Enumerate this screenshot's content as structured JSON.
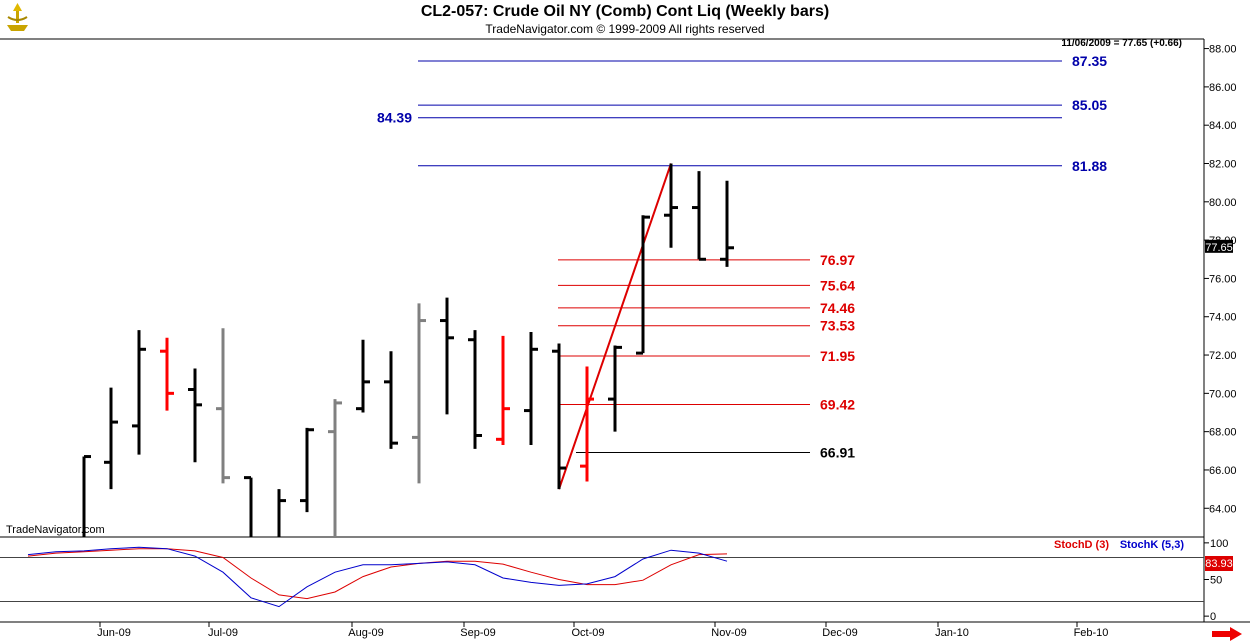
{
  "header": {
    "title": "CL2-057:  Crude Oil NY (Comb) Cont Liq  (Weekly bars)",
    "subtitle": "TradeNavigator.com © 1999-2009 All rights reserved",
    "last_quote": "11/06/2009 = 77.65 (+0.66)",
    "watermark": "TradeNavigator.com"
  },
  "colors": {
    "up_bar": "#000000",
    "down_bar": "#ff0000",
    "neutral_bar": "#808080",
    "blue_level": "#0000aa",
    "red_level": "#dd0000",
    "stoch_d": "#dd0000",
    "stoch_k": "#0000cc"
  },
  "chart_data": [
    {
      "type": "ohlc",
      "x_labels": [
        "Jun-09",
        "Jul-09",
        "Aug-09",
        "Sep-09",
        "Oct-09",
        "Nov-09",
        "Dec-09",
        "Jan-10",
        "Feb-10"
      ],
      "ylim": [
        62.5,
        88.5
      ],
      "y_ticks": [
        "64.00",
        "66.00",
        "68.00",
        "70.00",
        "72.00",
        "74.00",
        "76.00",
        "78.00",
        "80.00",
        "82.00",
        "84.00",
        "86.00",
        "88.00"
      ],
      "last_price": "77.65",
      "bars": [
        {
          "x": 84,
          "o": 61.5,
          "h": 66.7,
          "l": 61.0,
          "c": 66.7,
          "color": "up"
        },
        {
          "x": 111,
          "o": 66.4,
          "h": 70.3,
          "l": 65.0,
          "c": 68.5,
          "color": "up"
        },
        {
          "x": 139,
          "o": 68.3,
          "h": 73.3,
          "l": 66.8,
          "c": 72.3,
          "color": "up"
        },
        {
          "x": 167,
          "o": 72.2,
          "h": 72.9,
          "l": 69.1,
          "c": 70.0,
          "color": "down"
        },
        {
          "x": 195,
          "o": 70.2,
          "h": 71.3,
          "l": 66.4,
          "c": 69.4,
          "color": "up"
        },
        {
          "x": 223,
          "o": 69.2,
          "h": 73.4,
          "l": 65.3,
          "c": 65.6,
          "color": "neutral"
        },
        {
          "x": 251,
          "o": 65.6,
          "h": 65.6,
          "l": 61.5,
          "c": 62.0,
          "color": "up"
        },
        {
          "x": 279,
          "o": 62.5,
          "h": 65.0,
          "l": 62.0,
          "c": 64.4,
          "color": "up"
        },
        {
          "x": 307,
          "o": 64.4,
          "h": 68.2,
          "l": 63.8,
          "c": 68.1,
          "color": "up"
        },
        {
          "x": 335,
          "o": 68.0,
          "h": 69.7,
          "l": 62.0,
          "c": 69.5,
          "color": "neutral"
        },
        {
          "x": 363,
          "o": 69.2,
          "h": 72.8,
          "l": 69.0,
          "c": 70.6,
          "color": "up"
        },
        {
          "x": 391,
          "o": 70.6,
          "h": 72.2,
          "l": 67.1,
          "c": 67.4,
          "color": "up"
        },
        {
          "x": 419,
          "o": 67.7,
          "h": 74.7,
          "l": 65.3,
          "c": 73.8,
          "color": "neutral"
        },
        {
          "x": 447,
          "o": 73.8,
          "h": 75.0,
          "l": 68.9,
          "c": 72.9,
          "color": "up"
        },
        {
          "x": 475,
          "o": 72.8,
          "h": 73.3,
          "l": 67.1,
          "c": 67.8,
          "color": "up"
        },
        {
          "x": 503,
          "o": 67.6,
          "h": 73.0,
          "l": 67.3,
          "c": 69.2,
          "color": "down"
        },
        {
          "x": 531,
          "o": 69.1,
          "h": 73.2,
          "l": 67.3,
          "c": 72.3,
          "color": "up"
        },
        {
          "x": 559,
          "o": 72.2,
          "h": 72.6,
          "l": 65.0,
          "c": 66.1,
          "color": "up"
        },
        {
          "x": 587,
          "o": 66.2,
          "h": 71.4,
          "l": 65.4,
          "c": 69.7,
          "color": "down"
        },
        {
          "x": 615,
          "o": 69.7,
          "h": 72.5,
          "l": 68.0,
          "c": 72.4,
          "color": "up"
        },
        {
          "x": 643,
          "o": 72.1,
          "h": 79.3,
          "l": 72.1,
          "c": 79.2,
          "color": "up"
        },
        {
          "x": 671,
          "o": 79.3,
          "h": 82.0,
          "l": 77.6,
          "c": 79.7,
          "color": "up"
        },
        {
          "x": 699,
          "o": 79.7,
          "h": 81.6,
          "l": 77.0,
          "c": 77.0,
          "color": "up"
        },
        {
          "x": 727,
          "o": 77.0,
          "h": 81.1,
          "l": 76.6,
          "c": 77.6,
          "color": "up"
        }
      ],
      "trendline": {
        "from": [
          559,
          65.0
        ],
        "to": [
          671,
          82.0
        ]
      },
      "blue_levels": [
        {
          "value": 87.35,
          "label": "87.35"
        },
        {
          "value": 85.05,
          "label": "85.05"
        },
        {
          "value": 84.39,
          "label": "84.39"
        },
        {
          "value": 81.88,
          "label": "81.88"
        }
      ],
      "red_levels": [
        {
          "value": 76.97,
          "label": "76.97"
        },
        {
          "value": 75.64,
          "label": "75.64"
        },
        {
          "value": 74.46,
          "label": "74.46"
        },
        {
          "value": 73.53,
          "label": "73.53"
        },
        {
          "value": 71.95,
          "label": "71.95"
        },
        {
          "value": 69.42,
          "label": "69.42"
        }
      ],
      "black_levels": [
        {
          "value": 66.91,
          "label": "66.91"
        }
      ]
    },
    {
      "type": "line",
      "ylim": [
        -8,
        108
      ],
      "y_ticks": [
        "100",
        "50",
        "0"
      ],
      "reference_lines": [
        80,
        20
      ],
      "last_value": "83.93",
      "series": [
        {
          "name": "StochD (3)",
          "x": [
            28,
            56,
            84,
            111,
            139,
            167,
            195,
            223,
            251,
            279,
            307,
            335,
            363,
            391,
            419,
            447,
            475,
            503,
            531,
            559,
            587,
            615,
            643,
            671,
            699,
            727
          ],
          "values": [
            82,
            86,
            88,
            90,
            92,
            92,
            89,
            80,
            52,
            29,
            24,
            33,
            54,
            67,
            72,
            75,
            75,
            71,
            60,
            50,
            43,
            43,
            49,
            70,
            84,
            85
          ]
        },
        {
          "name": "StochK (5,3)",
          "x": [
            28,
            56,
            84,
            111,
            139,
            167,
            195,
            223,
            251,
            279,
            307,
            335,
            363,
            391,
            419,
            447,
            475,
            503,
            531,
            559,
            587,
            615,
            643,
            671,
            699,
            727
          ],
          "values": [
            84,
            88,
            89,
            92,
            94,
            92,
            82,
            60,
            25,
            13,
            40,
            60,
            70,
            70,
            72,
            74,
            70,
            52,
            46,
            42,
            44,
            54,
            78,
            90,
            86,
            75
          ]
        }
      ]
    }
  ]
}
